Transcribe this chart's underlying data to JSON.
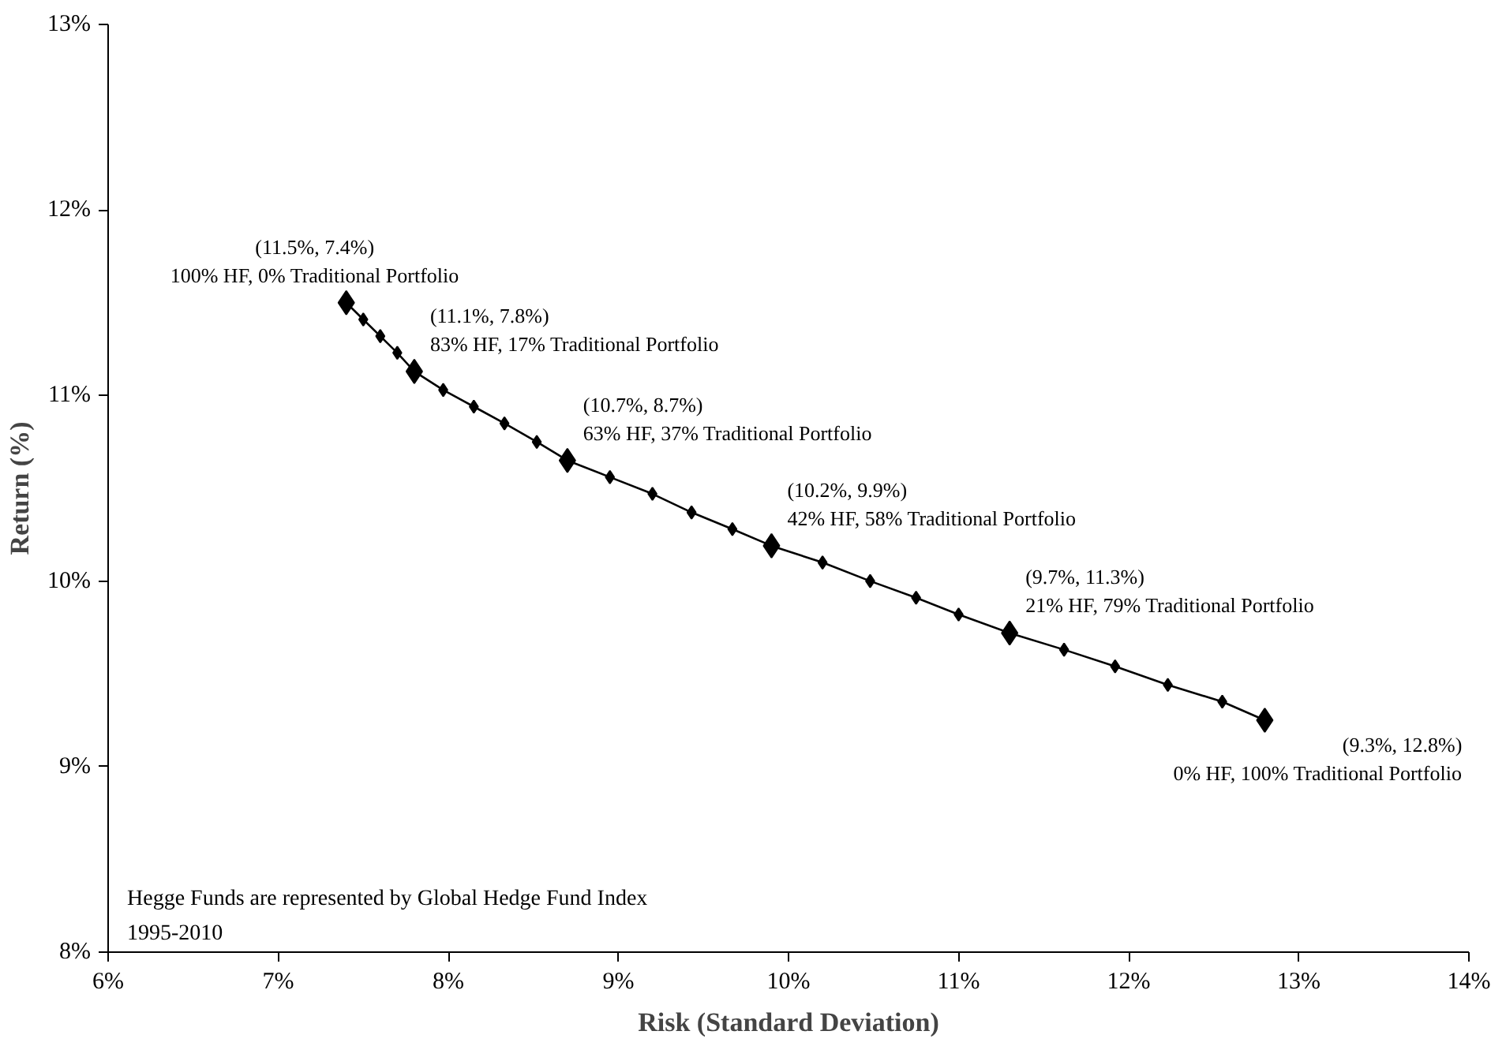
{
  "chart_data": {
    "type": "line",
    "xlabel": "Risk (Standard Deviation)",
    "ylabel": "Return (%)",
    "xlim": [
      6,
      14
    ],
    "ylim": [
      8,
      13
    ],
    "xticks": [
      {
        "value": 6,
        "label": "6%"
      },
      {
        "value": 7,
        "label": "7%"
      },
      {
        "value": 8,
        "label": "8%"
      },
      {
        "value": 9,
        "label": "9%"
      },
      {
        "value": 10,
        "label": "10%"
      },
      {
        "value": 11,
        "label": "11%"
      },
      {
        "value": 12,
        "label": "12%"
      },
      {
        "value": 13,
        "label": "13%"
      },
      {
        "value": 14,
        "label": "14%"
      }
    ],
    "yticks": [
      {
        "value": 8,
        "label": "8%"
      },
      {
        "value": 9,
        "label": "9%"
      },
      {
        "value": 10,
        "label": "10%"
      },
      {
        "value": 11,
        "label": "11%"
      },
      {
        "value": 12,
        "label": "12%"
      },
      {
        "value": 13,
        "label": "13%"
      }
    ],
    "grid": false,
    "series": [
      {
        "color": "#000000",
        "marker": "diamond",
        "x": [
          7.4,
          7.5,
          7.6,
          7.7,
          7.8,
          7.97,
          8.15,
          8.33,
          8.52,
          8.7,
          8.95,
          9.2,
          9.43,
          9.67,
          9.9,
          10.2,
          10.48,
          10.75,
          11.0,
          11.3,
          11.62,
          11.92,
          12.23,
          12.55,
          12.8
        ],
        "values": [
          11.5,
          11.41,
          11.32,
          11.23,
          11.13,
          11.03,
          10.94,
          10.85,
          10.75,
          10.65,
          10.56,
          10.47,
          10.37,
          10.28,
          10.19,
          10.1,
          10.0,
          9.91,
          9.82,
          9.72,
          9.63,
          9.54,
          9.44,
          9.35,
          9.25
        ]
      },
      {
        "type": "scatter",
        "color": "#000000",
        "marker": "diamond",
        "x": [
          7.4,
          7.8,
          8.7,
          9.9,
          11.3,
          12.8
        ],
        "values": [
          11.5,
          11.13,
          10.65,
          10.19,
          9.72,
          9.25
        ]
      }
    ],
    "annotations": [
      {
        "text": "(11.5%, 7.4%)\n100% HF, 0% Traditional Portfolio",
        "x": 7.4,
        "y": 11.5
      },
      {
        "text": "(11.1%, 7.8%)\n83% HF, 17% Traditional Portfolio",
        "x": 7.8,
        "y": 11.13
      },
      {
        "text": "(10.7%, 8.7%)\n63% HF, 37% Traditional Portfolio",
        "x": 8.7,
        "y": 10.65
      },
      {
        "text": "(10.2%, 9.9%)\n42% HF, 58% Traditional Portfolio",
        "x": 9.9,
        "y": 10.19
      },
      {
        "text": "(9.7%, 11.3%)\n21% HF, 79% Traditional Portfolio",
        "x": 11.3,
        "y": 9.72
      },
      {
        "text": "(9.3%, 12.8%)\n0% HF, 100% Traditional Portfolio",
        "x": 12.8,
        "y": 9.25
      },
      "Hegge Funds are represented by Global Hedge Fund Index\n1995-2010"
    ]
  }
}
